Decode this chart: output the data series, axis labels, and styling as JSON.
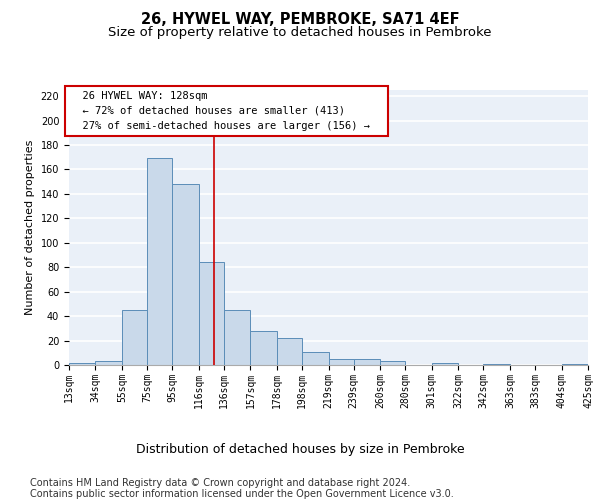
{
  "title": "26, HYWEL WAY, PEMBROKE, SA71 4EF",
  "subtitle": "Size of property relative to detached houses in Pembroke",
  "xlabel": "Distribution of detached houses by size in Pembroke",
  "ylabel": "Number of detached properties",
  "footnote1": "Contains HM Land Registry data © Crown copyright and database right 2024.",
  "footnote2": "Contains public sector information licensed under the Open Government Licence v3.0.",
  "annotation_line1": "26 HYWEL WAY: 128sqm",
  "annotation_line2": "← 72% of detached houses are smaller (413)",
  "annotation_line3": "27% of semi-detached houses are larger (156) →",
  "property_size": 128,
  "bin_edges": [
    13,
    34,
    55,
    75,
    95,
    116,
    136,
    157,
    178,
    198,
    219,
    239,
    260,
    280,
    301,
    322,
    342,
    363,
    383,
    404,
    425
  ],
  "bar_heights": [
    2,
    3,
    45,
    169,
    148,
    84,
    45,
    28,
    22,
    11,
    5,
    5,
    3,
    0,
    2,
    0,
    1,
    0,
    0,
    1
  ],
  "bar_color": "#c9d9ea",
  "bar_edge_color": "#5b8db8",
  "vline_color": "#cc0000",
  "vline_x": 128,
  "ylim": [
    0,
    225
  ],
  "yticks": [
    0,
    20,
    40,
    60,
    80,
    100,
    120,
    140,
    160,
    180,
    200,
    220
  ],
  "background_color": "#eaf0f8",
  "grid_color": "#ffffff",
  "annotation_box_color": "#ffffff",
  "annotation_box_edge": "#cc0000",
  "title_fontsize": 10.5,
  "subtitle_fontsize": 9.5,
  "xlabel_fontsize": 9,
  "ylabel_fontsize": 8,
  "footnote_fontsize": 7,
  "tick_fontsize": 7,
  "annotation_fontsize": 7.5
}
